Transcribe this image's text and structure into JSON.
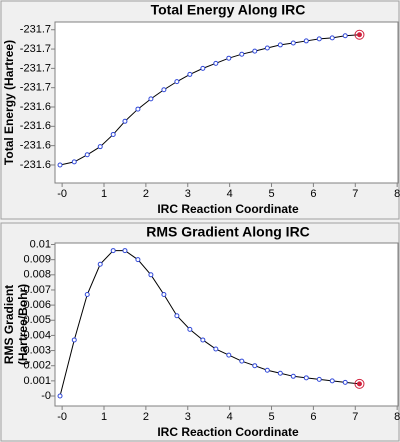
{
  "chart_data": [
    {
      "type": "line",
      "title": "Total Energy Along IRC",
      "xlabel": "IRC Reaction Coordinate",
      "ylabel": "Total Energy (Hartree)",
      "x": [
        -0.05,
        0.29,
        0.6,
        0.91,
        1.22,
        1.5,
        1.81,
        2.12,
        2.43,
        2.74,
        3.05,
        3.36,
        3.67,
        3.98,
        4.29,
        4.6,
        4.9,
        5.21,
        5.52,
        5.83,
        6.14,
        6.45,
        6.76,
        7.1
      ],
      "values": [
        -231.6,
        -231.6024,
        -231.6079,
        -231.6142,
        -231.6237,
        -231.6339,
        -231.6434,
        -231.6513,
        -231.6584,
        -231.6647,
        -231.6703,
        -231.675,
        -231.6789,
        -231.6829,
        -231.686,
        -231.6884,
        -231.6908,
        -231.6932,
        -231.6947,
        -231.6963,
        -231.6979,
        -231.6987,
        -231.7003,
        -231.7011
      ],
      "color": "#000000",
      "marker_color": "#3048d8",
      "highlight_color": "#d0203c",
      "xlim": [
        -0.17,
        8.02
      ],
      "xticks": [
        {
          "value": 0,
          "label": "-0"
        },
        1,
        2,
        3,
        4,
        5,
        6,
        7,
        8
      ],
      "ylim": [
        -231.586,
        -231.711
      ],
      "yticks": [
        {
          "value": -231.6,
          "label": "-231.6"
        },
        {
          "value": -231.615,
          "label": "-231.6"
        },
        {
          "value": -231.63,
          "label": "-231.6"
        },
        {
          "value": -231.645,
          "label": "-231.6"
        },
        {
          "value": -231.66,
          "label": "-231.7"
        },
        {
          "value": -231.675,
          "label": "-231.7"
        },
        {
          "value": -231.69,
          "label": "-231.7"
        },
        {
          "value": -231.705,
          "label": "-231.7"
        }
      ]
    },
    {
      "type": "line",
      "title": "RMS Gradient Along IRC",
      "xlabel": "IRC Reaction Coordinate",
      "ylabel": [
        "RMS Gradient",
        "(Hartree/Bohr)"
      ],
      "x": [
        -0.05,
        0.29,
        0.6,
        0.91,
        1.22,
        1.5,
        1.81,
        2.12,
        2.43,
        2.74,
        3.05,
        3.36,
        3.67,
        3.98,
        4.29,
        4.6,
        4.9,
        5.21,
        5.52,
        5.83,
        6.14,
        6.45,
        6.76,
        7.1
      ],
      "values": [
        0,
        0.0037,
        0.0067,
        0.0087,
        0.0096,
        0.0096,
        0.009,
        0.008,
        0.0067,
        0.0053,
        0.0044,
        0.0037,
        0.0031,
        0.0027,
        0.0023,
        0.002,
        0.0017,
        0.0015,
        0.0013,
        0.0012,
        0.0011,
        0.001,
        0.0009,
        0.0008
      ],
      "color": "#000000",
      "marker_color": "#3048d8",
      "highlight_color": "#d0203c",
      "xlim": [
        -0.17,
        8.02
      ],
      "xticks": [
        {
          "value": 0,
          "label": "-0"
        },
        1,
        2,
        3,
        4,
        5,
        6,
        7,
        8
      ],
      "ylim": [
        -0.00066,
        0.0101
      ],
      "yticks": [
        {
          "value": 0,
          "label": "-0"
        },
        0.001,
        0.002,
        0.003,
        0.004,
        0.005,
        0.006,
        0.007,
        0.008,
        0.009,
        0.01
      ]
    }
  ]
}
